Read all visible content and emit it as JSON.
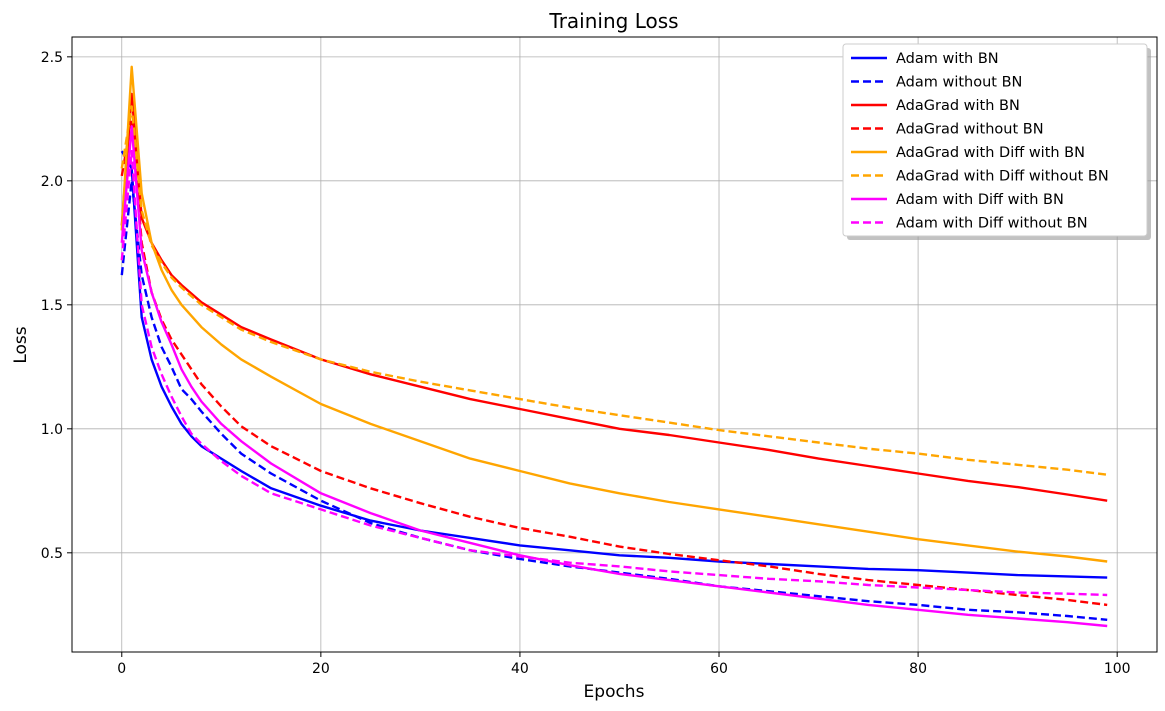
{
  "chart_data": {
    "type": "line",
    "title": "Training Loss",
    "xlabel": "Epochs",
    "ylabel": "Loss",
    "xlim": [
      -5,
      104
    ],
    "ylim": [
      0.1,
      2.58
    ],
    "xticks": [
      0,
      20,
      40,
      60,
      80,
      100
    ],
    "yticks": [
      0.5,
      1.0,
      1.5,
      2.0,
      2.5
    ],
    "xtick_labels": [
      "0",
      "20",
      "40",
      "60",
      "80",
      "100"
    ],
    "ytick_labels": [
      "0.5",
      "1.0",
      "1.5",
      "2.0",
      "2.5"
    ],
    "grid": true,
    "legend_position": "top-right",
    "series": [
      {
        "name": "Adam with BN",
        "color": "#0000ff",
        "dash": "solid",
        "points": [
          [
            0,
            2.12
          ],
          [
            1,
            2.05
          ],
          [
            2,
            1.45
          ],
          [
            3,
            1.28
          ],
          [
            4,
            1.17
          ],
          [
            5,
            1.09
          ],
          [
            6,
            1.02
          ],
          [
            7,
            0.97
          ],
          [
            8,
            0.93
          ],
          [
            10,
            0.88
          ],
          [
            12,
            0.83
          ],
          [
            15,
            0.76
          ],
          [
            20,
            0.69
          ],
          [
            25,
            0.63
          ],
          [
            30,
            0.59
          ],
          [
            35,
            0.56
          ],
          [
            40,
            0.53
          ],
          [
            45,
            0.51
          ],
          [
            50,
            0.49
          ],
          [
            55,
            0.48
          ],
          [
            60,
            0.465
          ],
          [
            65,
            0.455
          ],
          [
            70,
            0.445
          ],
          [
            75,
            0.435
          ],
          [
            80,
            0.43
          ],
          [
            85,
            0.42
          ],
          [
            90,
            0.41
          ],
          [
            95,
            0.405
          ],
          [
            99,
            0.4
          ]
        ]
      },
      {
        "name": "Adam without BN",
        "color": "#0000ff",
        "dash": "dashed",
        "points": [
          [
            0,
            1.62
          ],
          [
            1,
            2.0
          ],
          [
            2,
            1.62
          ],
          [
            3,
            1.45
          ],
          [
            4,
            1.33
          ],
          [
            5,
            1.25
          ],
          [
            6,
            1.16
          ],
          [
            7,
            1.12
          ],
          [
            8,
            1.07
          ],
          [
            10,
            0.98
          ],
          [
            12,
            0.9
          ],
          [
            15,
            0.82
          ],
          [
            20,
            0.71
          ],
          [
            25,
            0.62
          ],
          [
            30,
            0.56
          ],
          [
            35,
            0.51
          ],
          [
            40,
            0.475
          ],
          [
            45,
            0.445
          ],
          [
            50,
            0.42
          ],
          [
            55,
            0.395
          ],
          [
            60,
            0.365
          ],
          [
            65,
            0.345
          ],
          [
            70,
            0.325
          ],
          [
            75,
            0.305
          ],
          [
            80,
            0.29
          ],
          [
            85,
            0.27
          ],
          [
            90,
            0.26
          ],
          [
            95,
            0.245
          ],
          [
            99,
            0.23
          ]
        ]
      },
      {
        "name": "AdaGrad with BN",
        "color": "#ff0000",
        "dash": "solid",
        "points": [
          [
            0,
            1.82
          ],
          [
            1,
            2.35
          ],
          [
            2,
            1.85
          ],
          [
            3,
            1.75
          ],
          [
            4,
            1.68
          ],
          [
            5,
            1.62
          ],
          [
            6,
            1.58
          ],
          [
            8,
            1.51
          ],
          [
            10,
            1.46
          ],
          [
            12,
            1.41
          ],
          [
            15,
            1.36
          ],
          [
            20,
            1.28
          ],
          [
            25,
            1.22
          ],
          [
            30,
            1.17
          ],
          [
            35,
            1.12
          ],
          [
            40,
            1.08
          ],
          [
            45,
            1.04
          ],
          [
            50,
            1.0
          ],
          [
            55,
            0.975
          ],
          [
            60,
            0.945
          ],
          [
            65,
            0.915
          ],
          [
            70,
            0.88
          ],
          [
            75,
            0.85
          ],
          [
            80,
            0.82
          ],
          [
            85,
            0.79
          ],
          [
            90,
            0.765
          ],
          [
            95,
            0.735
          ],
          [
            99,
            0.71
          ]
        ]
      },
      {
        "name": "AdaGrad without BN",
        "color": "#ff0000",
        "dash": "dashed",
        "points": [
          [
            0,
            2.02
          ],
          [
            1,
            2.25
          ],
          [
            2,
            1.75
          ],
          [
            3,
            1.55
          ],
          [
            4,
            1.44
          ],
          [
            5,
            1.36
          ],
          [
            6,
            1.3
          ],
          [
            8,
            1.18
          ],
          [
            10,
            1.09
          ],
          [
            12,
            1.01
          ],
          [
            15,
            0.93
          ],
          [
            20,
            0.83
          ],
          [
            25,
            0.76
          ],
          [
            30,
            0.7
          ],
          [
            35,
            0.645
          ],
          [
            40,
            0.6
          ],
          [
            45,
            0.565
          ],
          [
            50,
            0.525
          ],
          [
            55,
            0.495
          ],
          [
            60,
            0.47
          ],
          [
            65,
            0.445
          ],
          [
            70,
            0.415
          ],
          [
            75,
            0.39
          ],
          [
            80,
            0.37
          ],
          [
            85,
            0.35
          ],
          [
            90,
            0.33
          ],
          [
            95,
            0.31
          ],
          [
            99,
            0.29
          ]
        ]
      },
      {
        "name": "AdaGrad with Diff with BN",
        "color": "#ffa500",
        "dash": "solid",
        "points": [
          [
            0,
            1.8
          ],
          [
            1,
            2.46
          ],
          [
            2,
            1.95
          ],
          [
            3,
            1.75
          ],
          [
            4,
            1.64
          ],
          [
            5,
            1.56
          ],
          [
            6,
            1.5
          ],
          [
            8,
            1.41
          ],
          [
            10,
            1.34
          ],
          [
            12,
            1.28
          ],
          [
            15,
            1.21
          ],
          [
            20,
            1.1
          ],
          [
            25,
            1.02
          ],
          [
            30,
            0.95
          ],
          [
            35,
            0.88
          ],
          [
            40,
            0.83
          ],
          [
            45,
            0.78
          ],
          [
            50,
            0.74
          ],
          [
            55,
            0.705
          ],
          [
            60,
            0.675
          ],
          [
            65,
            0.645
          ],
          [
            70,
            0.615
          ],
          [
            75,
            0.585
          ],
          [
            80,
            0.555
          ],
          [
            85,
            0.53
          ],
          [
            90,
            0.505
          ],
          [
            95,
            0.485
          ],
          [
            99,
            0.465
          ]
        ]
      },
      {
        "name": "AdaGrad with Diff without BN",
        "color": "#ffa500",
        "dash": "dashed",
        "points": [
          [
            0,
            2.05
          ],
          [
            1,
            2.3
          ],
          [
            2,
            1.88
          ],
          [
            3,
            1.74
          ],
          [
            4,
            1.67
          ],
          [
            5,
            1.61
          ],
          [
            6,
            1.57
          ],
          [
            8,
            1.5
          ],
          [
            10,
            1.45
          ],
          [
            12,
            1.4
          ],
          [
            15,
            1.35
          ],
          [
            20,
            1.28
          ],
          [
            25,
            1.23
          ],
          [
            30,
            1.19
          ],
          [
            35,
            1.155
          ],
          [
            40,
            1.12
          ],
          [
            45,
            1.085
          ],
          [
            50,
            1.055
          ],
          [
            55,
            1.025
          ],
          [
            60,
            0.995
          ],
          [
            65,
            0.97
          ],
          [
            70,
            0.945
          ],
          [
            75,
            0.92
          ],
          [
            80,
            0.9
          ],
          [
            85,
            0.875
          ],
          [
            90,
            0.855
          ],
          [
            95,
            0.835
          ],
          [
            99,
            0.815
          ]
        ]
      },
      {
        "name": "Adam with Diff with BN",
        "color": "#ff00ff",
        "dash": "solid",
        "points": [
          [
            0,
            1.75
          ],
          [
            1,
            2.22
          ],
          [
            2,
            1.72
          ],
          [
            3,
            1.55
          ],
          [
            4,
            1.43
          ],
          [
            5,
            1.34
          ],
          [
            6,
            1.24
          ],
          [
            7,
            1.17
          ],
          [
            8,
            1.11
          ],
          [
            10,
            1.02
          ],
          [
            12,
            0.95
          ],
          [
            15,
            0.86
          ],
          [
            20,
            0.74
          ],
          [
            25,
            0.66
          ],
          [
            30,
            0.59
          ],
          [
            35,
            0.54
          ],
          [
            40,
            0.49
          ],
          [
            45,
            0.45
          ],
          [
            50,
            0.415
          ],
          [
            55,
            0.39
          ],
          [
            60,
            0.365
          ],
          [
            65,
            0.34
          ],
          [
            70,
            0.315
          ],
          [
            75,
            0.29
          ],
          [
            80,
            0.27
          ],
          [
            85,
            0.25
          ],
          [
            90,
            0.235
          ],
          [
            95,
            0.22
          ],
          [
            99,
            0.205
          ]
        ]
      },
      {
        "name": "Adam with Diff without BN",
        "color": "#ff00ff",
        "dash": "dashed",
        "points": [
          [
            0,
            1.68
          ],
          [
            1,
            2.12
          ],
          [
            2,
            1.5
          ],
          [
            3,
            1.33
          ],
          [
            4,
            1.22
          ],
          [
            5,
            1.13
          ],
          [
            6,
            1.05
          ],
          [
            7,
            0.98
          ],
          [
            8,
            0.94
          ],
          [
            10,
            0.87
          ],
          [
            12,
            0.81
          ],
          [
            15,
            0.74
          ],
          [
            20,
            0.675
          ],
          [
            25,
            0.61
          ],
          [
            30,
            0.56
          ],
          [
            35,
            0.51
          ],
          [
            40,
            0.485
          ],
          [
            45,
            0.46
          ],
          [
            50,
            0.445
          ],
          [
            55,
            0.425
          ],
          [
            60,
            0.41
          ],
          [
            65,
            0.395
          ],
          [
            70,
            0.385
          ],
          [
            75,
            0.37
          ],
          [
            80,
            0.36
          ],
          [
            85,
            0.35
          ],
          [
            90,
            0.34
          ],
          [
            95,
            0.335
          ],
          [
            99,
            0.33
          ]
        ]
      }
    ]
  }
}
